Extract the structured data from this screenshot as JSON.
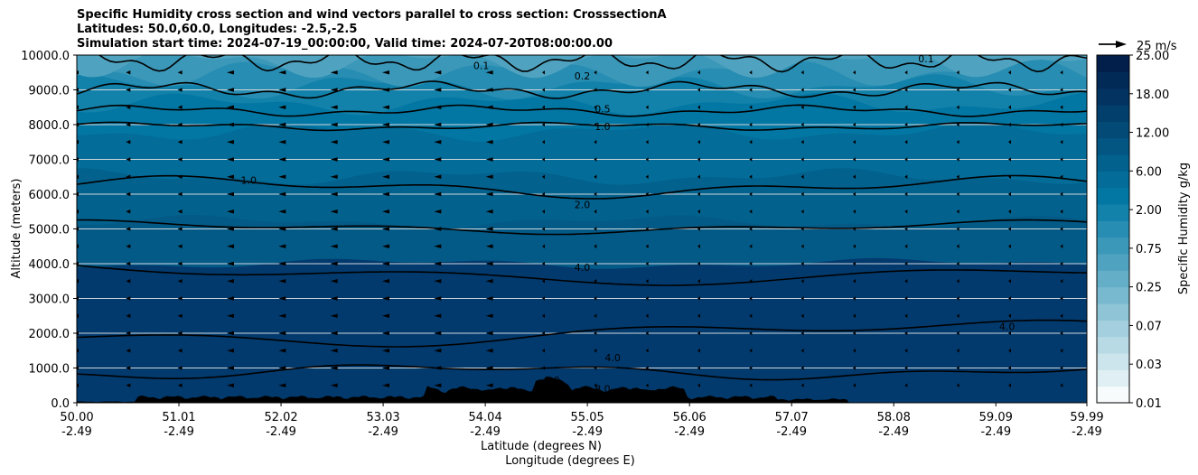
{
  "title_lines": [
    "Specific Humidity cross section and wind vectors parallel to cross section: CrosssectionA",
    "Latitudes: 50.0,60.0, Longitudes: -2.5,-2.5",
    "Simulation start time: 2024-07-19_00:00:00, Valid time: 2024-07-20T08:00:00.00"
  ],
  "chart_data": {
    "type": "heatmap",
    "ylabel": "Altitude (meters)",
    "xlabel_lines": [
      "Latitude (degrees N)",
      "Longitude (degrees E)"
    ],
    "y_ticks": [
      "0.0",
      "1000.0",
      "2000.0",
      "3000.0",
      "4000.0",
      "5000.0",
      "6000.0",
      "7000.0",
      "8000.0",
      "9000.0",
      "10000.0"
    ],
    "ylim": [
      0,
      10000
    ],
    "x_ticks": [
      {
        "lat": "50.00",
        "lon": "-2.49"
      },
      {
        "lat": "51.01",
        "lon": "-2.49"
      },
      {
        "lat": "52.02",
        "lon": "-2.49"
      },
      {
        "lat": "53.03",
        "lon": "-2.49"
      },
      {
        "lat": "54.04",
        "lon": "-2.49"
      },
      {
        "lat": "55.05",
        "lon": "-2.49"
      },
      {
        "lat": "56.06",
        "lon": "-2.49"
      },
      {
        "lat": "57.07",
        "lon": "-2.49"
      },
      {
        "lat": "58.08",
        "lon": "-2.49"
      },
      {
        "lat": "59.09",
        "lon": "-2.49"
      },
      {
        "lat": "59.99",
        "lon": "-2.49"
      }
    ],
    "xlim": [
      50.0,
      59.99
    ],
    "grid": "horizontal",
    "colorbar": {
      "label": "Specific Humidity g/kg",
      "ticks": [
        "0.01",
        "0.03",
        "0.07",
        "0.25",
        "0.75",
        "2.00",
        "6.00",
        "12.00",
        "18.00",
        "25.00"
      ],
      "colors": [
        "#f7fbfc",
        "#e0eff3",
        "#cce5ec",
        "#b7dae5",
        "#a3cfde",
        "#8ec4d6",
        "#79b9cf",
        "#65aec8",
        "#50a3c0",
        "#3c98b9",
        "#278db2",
        "#1382aa",
        "#0377a3",
        "#036c98",
        "#03618d",
        "#035582",
        "#034a77",
        "#033f6c",
        "#033461",
        "#022a56",
        "#021f4b"
      ]
    },
    "quiver_key": {
      "label": "25 m/s",
      "value": 25
    },
    "contour_labels": [
      {
        "text": "0.1",
        "lat": 54.0,
        "alt": 9700
      },
      {
        "text": "0.2",
        "lat": 55.0,
        "alt": 9400
      },
      {
        "text": "0.1",
        "lat": 58.4,
        "alt": 9900
      },
      {
        "text": "0.5",
        "lat": 55.2,
        "alt": 8450
      },
      {
        "text": "1.0",
        "lat": 55.2,
        "alt": 7950
      },
      {
        "text": "1.0",
        "lat": 51.7,
        "alt": 6400
      },
      {
        "text": "2.0",
        "lat": 55.0,
        "alt": 5700
      },
      {
        "text": "4.0",
        "lat": 55.0,
        "alt": 3900
      },
      {
        "text": "4.0",
        "lat": 59.2,
        "alt": 2200
      },
      {
        "text": "4.0",
        "lat": 55.3,
        "alt": 1300
      },
      {
        "text": "8.0",
        "lat": 54.7,
        "alt": 650
      },
      {
        "text": "8.0",
        "lat": 55.2,
        "alt": 400
      }
    ]
  }
}
